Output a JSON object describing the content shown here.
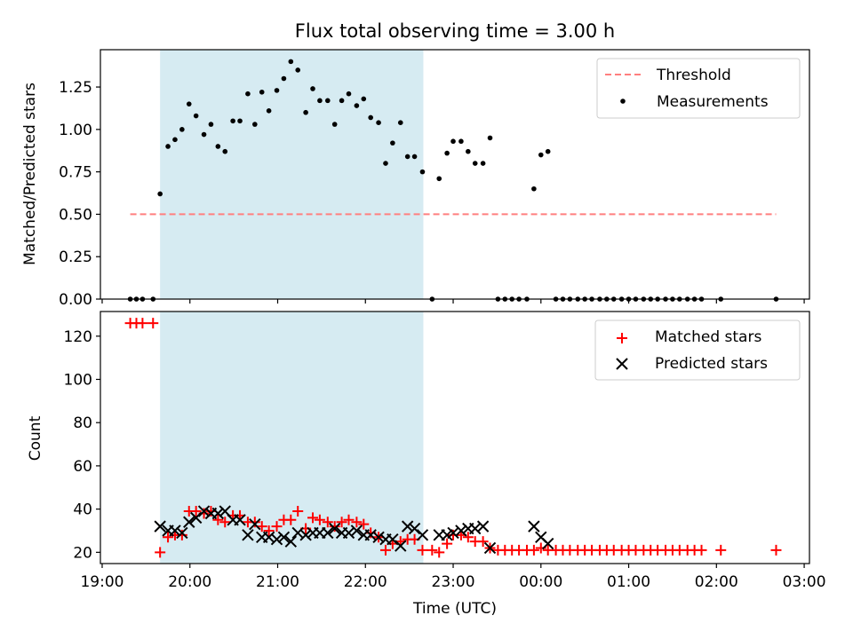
{
  "title": "Flux total observing time = 3.00 h",
  "colors": {
    "shade": "#add8e6",
    "threshold": "#ff7f7f",
    "matched": "#ff0000",
    "predicted": "#000000",
    "measurement": "#000000"
  },
  "chart_data": [
    {
      "type": "scatter",
      "panel": "top",
      "ylabel": "Matched/Predicted stars",
      "ylim": [
        0,
        1.47
      ],
      "yticks": [
        "0.00",
        "0.25",
        "0.50",
        "0.75",
        "1.00",
        "1.25"
      ],
      "x_unit": "hours since 19:00 UTC",
      "xlim": [
        -0.02,
        8.06
      ],
      "shaded_interval": [
        0.66,
        3.66
      ],
      "threshold": {
        "name": "Threshold",
        "y": 0.5,
        "x": [
          0.32,
          7.68
        ]
      },
      "legend": {
        "placement": "top-right",
        "entries": [
          "Threshold",
          "Measurements"
        ]
      },
      "series": [
        {
          "name": "Measurements",
          "points": [
            [
              0.32,
              0
            ],
            [
              0.39,
              0
            ],
            [
              0.46,
              0
            ],
            [
              0.58,
              0
            ],
            [
              0.66,
              0.62
            ],
            [
              0.75,
              0.9
            ],
            [
              0.83,
              0.94
            ],
            [
              0.91,
              1.0
            ],
            [
              0.99,
              1.15
            ],
            [
              1.07,
              1.08
            ],
            [
              1.16,
              0.97
            ],
            [
              1.24,
              1.03
            ],
            [
              1.32,
              0.9
            ],
            [
              1.4,
              0.87
            ],
            [
              1.49,
              1.05
            ],
            [
              1.57,
              1.05
            ],
            [
              1.66,
              1.21
            ],
            [
              1.74,
              1.03
            ],
            [
              1.82,
              1.22
            ],
            [
              1.9,
              1.11
            ],
            [
              1.99,
              1.23
            ],
            [
              2.07,
              1.3
            ],
            [
              2.15,
              1.4
            ],
            [
              2.23,
              1.35
            ],
            [
              2.32,
              1.1
            ],
            [
              2.4,
              1.24
            ],
            [
              2.48,
              1.17
            ],
            [
              2.57,
              1.17
            ],
            [
              2.65,
              1.03
            ],
            [
              2.73,
              1.17
            ],
            [
              2.81,
              1.21
            ],
            [
              2.9,
              1.14
            ],
            [
              2.98,
              1.18
            ],
            [
              3.06,
              1.07
            ],
            [
              3.15,
              1.04
            ],
            [
              3.23,
              0.8
            ],
            [
              3.31,
              0.92
            ],
            [
              3.4,
              1.04
            ],
            [
              3.48,
              0.84
            ],
            [
              3.56,
              0.84
            ],
            [
              3.65,
              0.75
            ],
            [
              3.76,
              0
            ],
            [
              3.84,
              0.71
            ],
            [
              3.93,
              0.86
            ],
            [
              4.0,
              0.93
            ],
            [
              4.09,
              0.93
            ],
            [
              4.17,
              0.87
            ],
            [
              4.25,
              0.8
            ],
            [
              4.34,
              0.8
            ],
            [
              4.42,
              0.95
            ],
            [
              4.51,
              0
            ],
            [
              4.59,
              0
            ],
            [
              4.67,
              0
            ],
            [
              4.75,
              0
            ],
            [
              4.84,
              0
            ],
            [
              4.92,
              0.65
            ],
            [
              5.0,
              0.85
            ],
            [
              5.08,
              0.87
            ],
            [
              5.17,
              0
            ],
            [
              5.25,
              0
            ],
            [
              5.33,
              0
            ],
            [
              5.42,
              0
            ],
            [
              5.5,
              0
            ],
            [
              5.58,
              0
            ],
            [
              5.67,
              0
            ],
            [
              5.75,
              0
            ],
            [
              5.83,
              0
            ],
            [
              5.92,
              0
            ],
            [
              6.0,
              0
            ],
            [
              6.08,
              0
            ],
            [
              6.17,
              0
            ],
            [
              6.25,
              0
            ],
            [
              6.33,
              0
            ],
            [
              6.42,
              0
            ],
            [
              6.5,
              0
            ],
            [
              6.58,
              0
            ],
            [
              6.67,
              0
            ],
            [
              6.75,
              0
            ],
            [
              6.83,
              0
            ],
            [
              7.05,
              0
            ],
            [
              7.68,
              0
            ]
          ]
        }
      ]
    },
    {
      "type": "scatter",
      "panel": "bottom",
      "xlabel": "Time (UTC)",
      "ylabel": "Count",
      "ylim": [
        14.8,
        131.4
      ],
      "yticks": [
        "20",
        "40",
        "60",
        "80",
        "100",
        "120"
      ],
      "x_unit": "hours since 19:00 UTC",
      "xlim": [
        -0.02,
        8.06
      ],
      "xticks": [
        "19:00",
        "20:00",
        "21:00",
        "22:00",
        "23:00",
        "00:00",
        "01:00",
        "02:00",
        "03:00"
      ],
      "shaded_interval": [
        0.66,
        3.66
      ],
      "legend": {
        "placement": "top-right",
        "entries": [
          "Matched stars",
          "Predicted stars"
        ]
      },
      "series": [
        {
          "name": "Matched stars",
          "points": [
            [
              0.32,
              126
            ],
            [
              0.39,
              126
            ],
            [
              0.46,
              126
            ],
            [
              0.58,
              126
            ],
            [
              0.66,
              20
            ],
            [
              0.75,
              27
            ],
            [
              0.83,
              28
            ],
            [
              0.91,
              28
            ],
            [
              0.99,
              39
            ],
            [
              1.07,
              39
            ],
            [
              1.16,
              38
            ],
            [
              1.24,
              39
            ],
            [
              1.32,
              35
            ],
            [
              1.4,
              34
            ],
            [
              1.49,
              37
            ],
            [
              1.57,
              37
            ],
            [
              1.66,
              34
            ],
            [
              1.74,
              34
            ],
            [
              1.82,
              32
            ],
            [
              1.9,
              30
            ],
            [
              1.99,
              32
            ],
            [
              2.07,
              35
            ],
            [
              2.15,
              35
            ],
            [
              2.23,
              39
            ],
            [
              2.32,
              31
            ],
            [
              2.4,
              36
            ],
            [
              2.48,
              35
            ],
            [
              2.57,
              34
            ],
            [
              2.65,
              32
            ],
            [
              2.73,
              34
            ],
            [
              2.81,
              35
            ],
            [
              2.9,
              34
            ],
            [
              2.98,
              33
            ],
            [
              3.06,
              29
            ],
            [
              3.15,
              27
            ],
            [
              3.23,
              21
            ],
            [
              3.31,
              24
            ],
            [
              3.4,
              25
            ],
            [
              3.48,
              26
            ],
            [
              3.56,
              26
            ],
            [
              3.65,
              21
            ],
            [
              3.76,
              21
            ],
            [
              3.84,
              20
            ],
            [
              3.93,
              24
            ],
            [
              4.0,
              28
            ],
            [
              4.09,
              28
            ],
            [
              4.17,
              27
            ],
            [
              4.25,
              25
            ],
            [
              4.34,
              25
            ],
            [
              4.42,
              22
            ],
            [
              4.51,
              21
            ],
            [
              4.59,
              21
            ],
            [
              4.67,
              21
            ],
            [
              4.75,
              21
            ],
            [
              4.84,
              21
            ],
            [
              4.92,
              21
            ],
            [
              5.0,
              22
            ],
            [
              5.08,
              21
            ],
            [
              5.17,
              21
            ],
            [
              5.25,
              21
            ],
            [
              5.33,
              21
            ],
            [
              5.42,
              21
            ],
            [
              5.5,
              21
            ],
            [
              5.58,
              21
            ],
            [
              5.67,
              21
            ],
            [
              5.75,
              21
            ],
            [
              5.83,
              21
            ],
            [
              5.92,
              21
            ],
            [
              6.0,
              21
            ],
            [
              6.08,
              21
            ],
            [
              6.17,
              21
            ],
            [
              6.25,
              21
            ],
            [
              6.33,
              21
            ],
            [
              6.42,
              21
            ],
            [
              6.5,
              21
            ],
            [
              6.58,
              21
            ],
            [
              6.67,
              21
            ],
            [
              6.75,
              21
            ],
            [
              6.83,
              21
            ],
            [
              7.05,
              21
            ],
            [
              7.68,
              21
            ]
          ]
        },
        {
          "name": "Predicted stars",
          "points": [
            [
              0.66,
              32
            ],
            [
              0.75,
              30
            ],
            [
              0.83,
              30
            ],
            [
              0.91,
              29
            ],
            [
              0.99,
              34
            ],
            [
              1.07,
              36
            ],
            [
              1.16,
              39
            ],
            [
              1.24,
              38
            ],
            [
              1.32,
              38
            ],
            [
              1.4,
              39
            ],
            [
              1.49,
              35
            ],
            [
              1.57,
              35
            ],
            [
              1.66,
              28
            ],
            [
              1.74,
              33
            ],
            [
              1.82,
              27
            ],
            [
              1.9,
              27
            ],
            [
              1.99,
              26
            ],
            [
              2.07,
              27
            ],
            [
              2.15,
              25
            ],
            [
              2.23,
              29
            ],
            [
              2.32,
              28
            ],
            [
              2.4,
              29
            ],
            [
              2.48,
              29
            ],
            [
              2.57,
              29
            ],
            [
              2.65,
              31
            ],
            [
              2.73,
              29
            ],
            [
              2.81,
              29
            ],
            [
              2.9,
              30
            ],
            [
              2.98,
              28
            ],
            [
              3.06,
              28
            ],
            [
              3.15,
              27
            ],
            [
              3.23,
              26
            ],
            [
              3.31,
              26
            ],
            [
              3.4,
              23
            ],
            [
              3.48,
              32
            ],
            [
              3.56,
              31
            ],
            [
              3.65,
              28
            ],
            [
              3.84,
              28
            ],
            [
              3.93,
              28
            ],
            [
              4.0,
              29
            ],
            [
              4.09,
              30
            ],
            [
              4.17,
              31
            ],
            [
              4.25,
              31
            ],
            [
              4.34,
              32
            ],
            [
              4.42,
              22
            ],
            [
              4.92,
              32
            ],
            [
              5.0,
              27
            ],
            [
              5.08,
              24
            ]
          ]
        }
      ]
    }
  ]
}
